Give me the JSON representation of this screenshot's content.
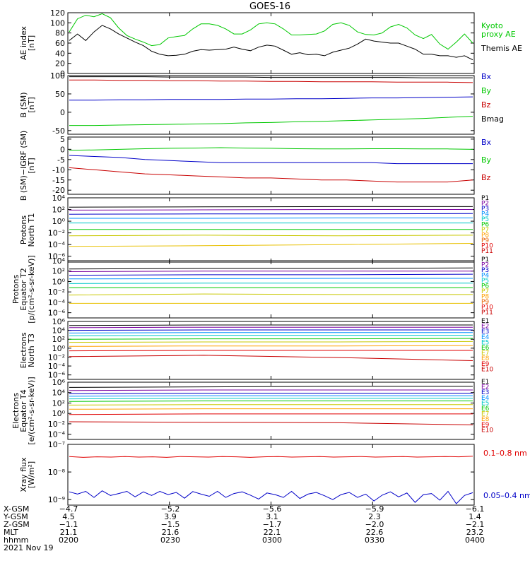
{
  "title": "GOES-16",
  "date": "2021 Nov 19",
  "footer": {
    "labels": [
      "X-GSM",
      "Y-GSM",
      "Z-GSM",
      "MLT",
      "hhmm"
    ],
    "columns": [
      [
        "−4.7",
        "4.5",
        "−1.1",
        "21.1",
        "0200"
      ],
      [
        "−5.2",
        "3.9",
        "−1.5",
        "21.6",
        "0230"
      ],
      [
        "−5.6",
        "3.1",
        "−1.7",
        "22.1",
        "0300"
      ],
      [
        "−5.9",
        "2.3",
        "−2.0",
        "22.6",
        "0330"
      ],
      [
        "−6.1",
        "1.4",
        "−2.1",
        "23.2",
        "0400"
      ]
    ]
  },
  "chart_data": [
    {
      "type": "line",
      "ylabel": "AE index\n[nT]",
      "ylim": [
        0,
        120
      ],
      "yticks": [
        "0",
        "20",
        "40",
        "60",
        "80",
        "100",
        "120"
      ],
      "legend": [
        {
          "text": "Kyoto\nproxy AE",
          "color": "#00c800"
        },
        {
          "text": "Themis AE",
          "color": "#000000"
        }
      ],
      "series": [
        {
          "name": "Kyoto proxy AE",
          "color": "#00c800",
          "values": [
            82,
            108,
            115,
            112,
            118,
            110,
            90,
            75,
            68,
            62,
            55,
            57,
            70,
            73,
            75,
            88,
            98,
            98,
            95,
            88,
            78,
            78,
            86,
            98,
            100,
            98,
            88,
            76,
            76,
            77,
            78,
            84,
            97,
            100,
            95,
            82,
            77,
            76,
            80,
            92,
            97,
            90,
            76,
            69,
            77,
            58,
            48,
            62,
            78,
            60
          ]
        },
        {
          "name": "Themis AE",
          "color": "#000000",
          "values": [
            65,
            78,
            65,
            82,
            95,
            88,
            78,
            70,
            62,
            55,
            44,
            38,
            35,
            36,
            38,
            44,
            47,
            46,
            47,
            48,
            52,
            48,
            45,
            52,
            56,
            54,
            46,
            38,
            41,
            37,
            38,
            35,
            42,
            46,
            50,
            58,
            68,
            64,
            62,
            60,
            60,
            54,
            48,
            38,
            38,
            35,
            35,
            32,
            35,
            27
          ]
        }
      ]
    },
    {
      "type": "line",
      "ylabel": "B (SM)\n[nT]",
      "ylim": [
        -60,
        100
      ],
      "yticks": [
        "-50",
        "0",
        "50",
        "100"
      ],
      "legend": [
        {
          "text": "Bx",
          "color": "#0000c8"
        },
        {
          "text": "By",
          "color": "#00c800"
        },
        {
          "text": "Bz",
          "color": "#c80000"
        },
        {
          "text": "Bmag",
          "color": "#000000"
        }
      ],
      "series": [
        {
          "name": "Bmag",
          "color": "#000000",
          "values": [
            97,
            97,
            97,
            97,
            96,
            96,
            96,
            96,
            95,
            95,
            95,
            95,
            95,
            95,
            94,
            94,
            94
          ]
        },
        {
          "name": "Bz",
          "color": "#c80000",
          "values": [
            88,
            88,
            87,
            87,
            86,
            86,
            85,
            85,
            84,
            84,
            83,
            83,
            83,
            82,
            82,
            82,
            81
          ]
        },
        {
          "name": "Bx",
          "color": "#0000c8",
          "values": [
            33,
            33,
            34,
            34,
            35,
            35,
            35,
            36,
            36,
            37,
            37,
            38,
            39,
            39,
            40,
            41,
            42
          ]
        },
        {
          "name": "By",
          "color": "#00c800",
          "values": [
            -36,
            -36,
            -35,
            -34,
            -33,
            -32,
            -31,
            -29,
            -28,
            -26,
            -25,
            -23,
            -21,
            -19,
            -17,
            -14,
            -11
          ]
        }
      ]
    },
    {
      "type": "line",
      "ylabel": "B (SM)−IGRF (SM)\n[nT]",
      "ylim": [
        -22,
        6
      ],
      "yticks": [
        "-20",
        "-15",
        "-10",
        "-5",
        "0",
        "5"
      ],
      "legend": [
        {
          "text": "Bx",
          "color": "#0000c8"
        },
        {
          "text": "By",
          "color": "#00c800"
        },
        {
          "text": "Bz",
          "color": "#c80000"
        }
      ],
      "series": [
        {
          "name": "By",
          "color": "#00c800",
          "values": [
            -0.5,
            -0.3,
            0,
            0.3,
            0.5,
            0.6,
            0.8,
            0.6,
            0.5,
            0.3,
            0.2,
            0.2,
            0.3,
            0.3,
            0.2,
            0.2,
            0
          ]
        },
        {
          "name": "Bx",
          "color": "#0000c8",
          "values": [
            -3,
            -3.5,
            -4,
            -5,
            -5.5,
            -6,
            -6.5,
            -6.5,
            -6.5,
            -6.5,
            -6.5,
            -6.5,
            -6.5,
            -7,
            -7,
            -7,
            -7
          ]
        },
        {
          "name": "Bz",
          "color": "#c80000",
          "values": [
            -9,
            -10,
            -11,
            -12,
            -12.5,
            -13,
            -13.5,
            -14,
            -14,
            -14.5,
            -15,
            -15,
            -15.5,
            -16,
            -16,
            -16,
            -15
          ]
        }
      ]
    },
    {
      "type": "line",
      "log": true,
      "ylabel": "Protons\nNorth T1",
      "ylim": [
        -7,
        4
      ],
      "yticks": [
        "10⁴",
        "10²",
        "10⁰",
        "10⁻²",
        "10⁻⁴",
        "10⁻⁶"
      ],
      "legend": [
        {
          "text": "P1",
          "color": "#000000"
        },
        {
          "text": "P2",
          "color": "#7a00a0"
        },
        {
          "text": "P3",
          "color": "#0000c8"
        },
        {
          "text": "P4",
          "color": "#0090ff"
        },
        {
          "text": "P5",
          "color": "#00c8c8"
        },
        {
          "text": "P6",
          "color": "#00c800"
        },
        {
          "text": "P7",
          "color": "#c8c800"
        },
        {
          "text": "P8",
          "color": "#ffa000"
        },
        {
          "text": "P9",
          "color": "#e86000"
        },
        {
          "text": "P10",
          "color": "#e00000"
        },
        {
          "text": "P11",
          "color": "#c80000"
        }
      ],
      "series": [
        {
          "name": "P1",
          "color": "#000000",
          "values": [
            2.4,
            2.45,
            2.5,
            2.5
          ]
        },
        {
          "name": "P2",
          "color": "#7a00a0",
          "values": [
            1.9,
            1.95,
            2.0,
            2.0
          ]
        },
        {
          "name": "P3",
          "color": "#0000c8",
          "values": [
            1.2,
            1.25,
            1.25,
            1.3
          ]
        },
        {
          "name": "P4",
          "color": "#0090ff",
          "values": [
            0.5,
            0.5,
            0.55,
            0.55
          ]
        },
        {
          "name": "P5",
          "color": "#00c8c8",
          "values": [
            -0.3,
            -0.3,
            -0.3,
            -0.3
          ]
        },
        {
          "name": "P6",
          "color": "#00c800",
          "values": [
            -1.4,
            -1.4,
            -1.4,
            -1.4
          ]
        },
        {
          "name": "P7",
          "color": "#c8c800",
          "values": [
            -2.5,
            -2.4,
            -2.5,
            -2.4
          ]
        },
        {
          "name": "P8",
          "color": "#e8c000",
          "values": [
            -4.3,
            -4.2,
            -4.0,
            -3.8
          ]
        }
      ]
    },
    {
      "type": "line",
      "log": true,
      "ylabel": "Protons\nEquator T2\n[p/(cm²-s-sr-keV)]",
      "ylim": [
        -7,
        4
      ],
      "yticks": [
        "10⁴",
        "10²",
        "10⁰",
        "10⁻²",
        "10⁻⁴",
        "10⁻⁶"
      ],
      "legend": [
        {
          "text": "P1",
          "color": "#000000"
        },
        {
          "text": "P2",
          "color": "#7a00a0"
        },
        {
          "text": "P3",
          "color": "#0000c8"
        },
        {
          "text": "P4",
          "color": "#0090ff"
        },
        {
          "text": "P5",
          "color": "#00c8c8"
        },
        {
          "text": "P6",
          "color": "#00c800"
        },
        {
          "text": "P7",
          "color": "#c8c800"
        },
        {
          "text": "P8",
          "color": "#ffa000"
        },
        {
          "text": "P9",
          "color": "#e86000"
        },
        {
          "text": "P10",
          "color": "#e00000"
        },
        {
          "text": "P11",
          "color": "#c80000"
        }
      ],
      "series": [
        {
          "name": "P1",
          "color": "#000000",
          "values": [
            2.4,
            2.5,
            2.5,
            2.6
          ]
        },
        {
          "name": "P2",
          "color": "#7a00a0",
          "values": [
            1.9,
            2.0,
            2.0,
            2.0
          ]
        },
        {
          "name": "P3",
          "color": "#0000c8",
          "values": [
            1.2,
            1.3,
            1.3,
            1.4
          ]
        },
        {
          "name": "P4",
          "color": "#0090ff",
          "values": [
            0.5,
            0.55,
            0.6,
            0.6
          ]
        },
        {
          "name": "P5",
          "color": "#00c8c8",
          "values": [
            -0.4,
            -0.3,
            -0.3,
            -0.3
          ]
        },
        {
          "name": "P6",
          "color": "#00c800",
          "values": [
            -1.2,
            -1.2,
            -1.2,
            -1.2
          ]
        },
        {
          "name": "P7",
          "color": "#c8c800",
          "values": [
            -2.6,
            -2.4,
            -2.5,
            -2.5
          ]
        },
        {
          "name": "P8",
          "color": "#e8c000",
          "values": [
            -4.2,
            -4.2,
            -4.2,
            -4.2
          ]
        }
      ]
    },
    {
      "type": "line",
      "log": true,
      "ylabel": "Electrons\nNorth T3",
      "ylim": [
        -7,
        6
      ],
      "yticks": [
        "10⁶",
        "10⁴",
        "10²",
        "10⁰",
        "10⁻²",
        "10⁻⁴",
        "10⁻⁶"
      ],
      "legend": [
        {
          "text": "E1",
          "color": "#000000"
        },
        {
          "text": "E2",
          "color": "#7a00a0"
        },
        {
          "text": "E3",
          "color": "#0000c8"
        },
        {
          "text": "E4",
          "color": "#0090ff"
        },
        {
          "text": "E5",
          "color": "#00c8c8"
        },
        {
          "text": "E6",
          "color": "#00c800"
        },
        {
          "text": "E7",
          "color": "#c8c800"
        },
        {
          "text": "E8",
          "color": "#ffa000"
        },
        {
          "text": "E9",
          "color": "#e00000"
        },
        {
          "text": "E10",
          "color": "#c80000"
        }
      ],
      "series": [
        {
          "name": "E1",
          "color": "#000000",
          "values": [
            5.1,
            5.2,
            5.2,
            5.2
          ]
        },
        {
          "name": "E2",
          "color": "#7a00a0",
          "values": [
            4.6,
            4.7,
            4.7,
            4.7
          ]
        },
        {
          "name": "E3",
          "color": "#0000c8",
          "values": [
            4.0,
            4.1,
            4.1,
            4.1
          ]
        },
        {
          "name": "E4",
          "color": "#0090ff",
          "values": [
            3.4,
            3.5,
            3.5,
            3.5
          ]
        },
        {
          "name": "E5",
          "color": "#00c8c8",
          "values": [
            2.8,
            2.9,
            2.9,
            2.9
          ]
        },
        {
          "name": "E6",
          "color": "#00c800",
          "values": [
            2.0,
            2.1,
            2.1,
            2.2
          ]
        },
        {
          "name": "E7",
          "color": "#c8c800",
          "values": [
            1.3,
            1.4,
            1.4,
            1.5
          ]
        },
        {
          "name": "E8",
          "color": "#ffa000",
          "values": [
            0.4,
            0.5,
            0.5,
            0.6
          ]
        },
        {
          "name": "E9",
          "color": "#e00000",
          "values": [
            -0.6,
            -0.5,
            -0.5,
            -0.5
          ]
        },
        {
          "name": "E10",
          "color": "#c80000",
          "values": [
            -1.9,
            -1.6,
            -2.1,
            -2.8
          ]
        }
      ]
    },
    {
      "type": "line",
      "log": true,
      "ylabel": "Electrons\nEquator T4\n[e/(cm²-s-sr-keV)]",
      "ylim": [
        -5,
        6
      ],
      "yticks": [
        "10⁶",
        "10⁴",
        "10²",
        "10⁰",
        "10⁻²",
        "10⁻⁴"
      ],
      "legend": [
        {
          "text": "E1",
          "color": "#000000"
        },
        {
          "text": "E2",
          "color": "#7a00a0"
        },
        {
          "text": "E3",
          "color": "#0000c8"
        },
        {
          "text": "E4",
          "color": "#0090ff"
        },
        {
          "text": "E5",
          "color": "#00c8c8"
        },
        {
          "text": "E6",
          "color": "#00c800"
        },
        {
          "text": "E7",
          "color": "#c8c800"
        },
        {
          "text": "E8",
          "color": "#ffa000"
        },
        {
          "text": "E9",
          "color": "#e00000"
        },
        {
          "text": "E10",
          "color": "#c80000"
        }
      ],
      "series": [
        {
          "name": "E1",
          "color": "#000000",
          "values": [
            5.0,
            5.1,
            5.2,
            5.2
          ]
        },
        {
          "name": "E2",
          "color": "#7a00a0",
          "values": [
            4.4,
            4.5,
            4.5,
            4.5
          ]
        },
        {
          "name": "E3",
          "color": "#0000c8",
          "values": [
            3.8,
            3.9,
            3.9,
            3.9
          ]
        },
        {
          "name": "E4",
          "color": "#0090ff",
          "values": [
            3.3,
            3.4,
            3.4,
            3.4
          ]
        },
        {
          "name": "E5",
          "color": "#00c8c8",
          "values": [
            2.8,
            2.9,
            2.9,
            2.9
          ]
        },
        {
          "name": "E6",
          "color": "#00c800",
          "values": [
            2.3,
            2.4,
            2.4,
            2.4
          ]
        },
        {
          "name": "E7",
          "color": "#c8c800",
          "values": [
            1.6,
            1.7,
            1.7,
            1.7
          ]
        },
        {
          "name": "E8",
          "color": "#ffa000",
          "values": [
            0.8,
            0.9,
            0.9,
            0.9
          ]
        },
        {
          "name": "E9",
          "color": "#e00000",
          "values": [
            -0.2,
            -0.1,
            -0.1,
            -0.1
          ]
        },
        {
          "name": "E10",
          "color": "#c80000",
          "values": [
            -1.6,
            -1.7,
            -1.8,
            -2.2
          ]
        }
      ]
    },
    {
      "type": "line",
      "log": true,
      "ylabel": "Xray flux\n[W/m²]",
      "ylim": [
        -9.2,
        -7
      ],
      "yticks": [
        "10⁻⁷",
        "10⁻⁸",
        "10⁻⁹"
      ],
      "legend": [
        {
          "text": "0.1–0.8 nm",
          "color": "#e00000"
        },
        {
          "text": "0.05–0.4 nm",
          "color": "#0000c8"
        }
      ],
      "series": [
        {
          "name": "0.1–0.8 nm",
          "color": "#e00000",
          "values": [
            -7.44,
            -7.47,
            -7.45,
            -7.46,
            -7.44,
            -7.46,
            -7.45,
            -7.47,
            -7.44,
            -7.45,
            -7.46,
            -7.44,
            -7.45,
            -7.47,
            -7.45,
            -7.44,
            -7.46,
            -7.45,
            -7.44,
            -7.46,
            -7.45,
            -7.44,
            -7.46,
            -7.45,
            -7.44,
            -7.46,
            -7.45,
            -7.44,
            -7.45,
            -7.43
          ]
        },
        {
          "name": "0.05–0.4 nm",
          "color": "#0000c8",
          "values": [
            -8.72,
            -8.8,
            -8.7,
            -8.92,
            -8.68,
            -8.85,
            -8.78,
            -8.7,
            -8.9,
            -8.72,
            -8.85,
            -8.7,
            -8.82,
            -8.74,
            -8.95,
            -8.71,
            -8.8,
            -8.88,
            -8.7,
            -8.92,
            -8.78,
            -8.72,
            -8.84,
            -8.98,
            -8.76,
            -8.82,
            -8.92,
            -8.7,
            -8.96,
            -8.8,
            -8.74,
            -8.86,
            -9.0,
            -8.82,
            -8.74,
            -8.92,
            -8.8,
            -9.05,
            -8.84,
            -8.72,
            -8.9,
            -8.76,
            -9.1,
            -8.82,
            -8.78,
            -9.02,
            -8.7,
            -9.15,
            -8.85,
            -8.75
          ]
        }
      ]
    }
  ]
}
